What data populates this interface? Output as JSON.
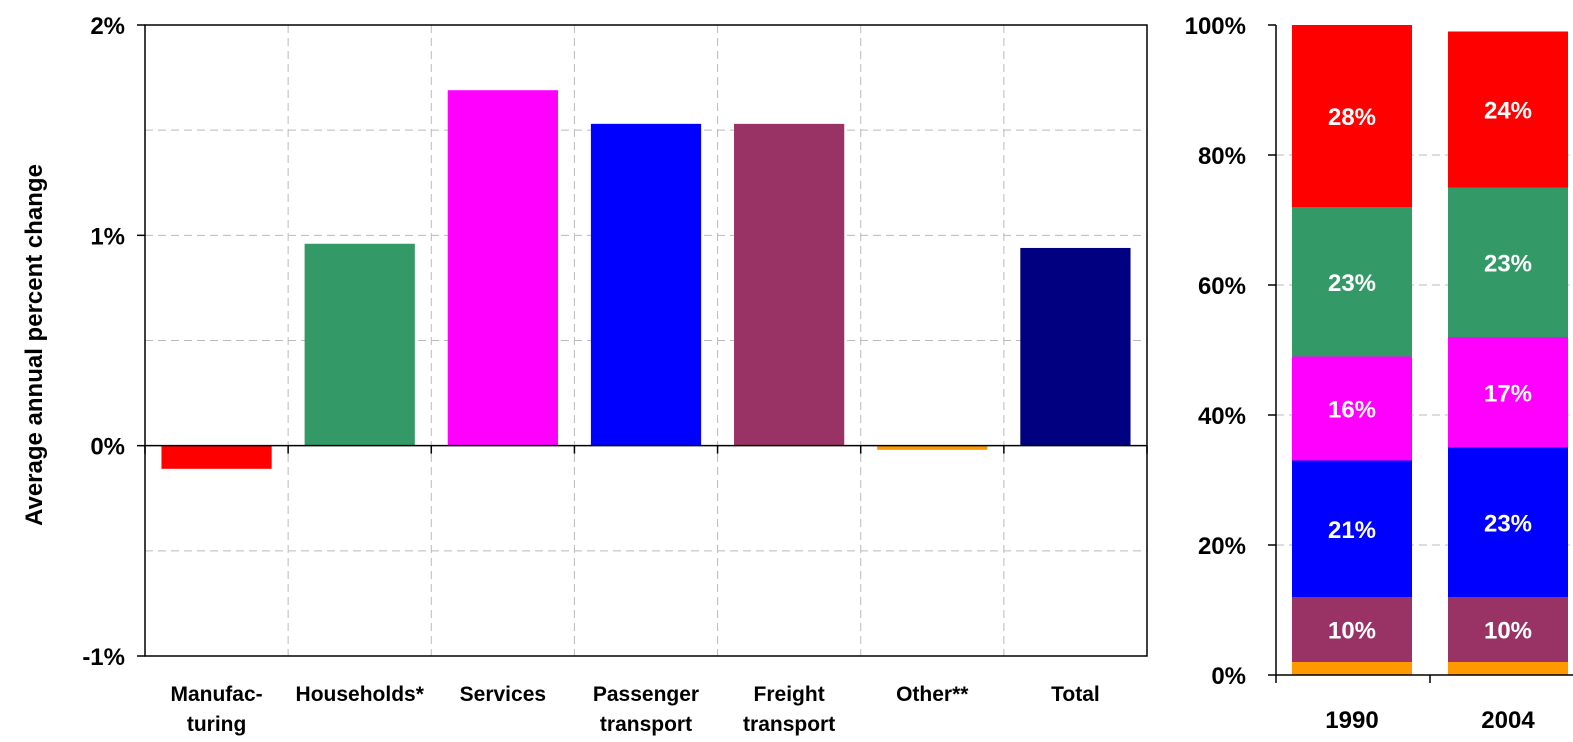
{
  "chart_data": [
    {
      "type": "bar",
      "ylabel": "Average annual percent change",
      "ylim": [
        -0.01,
        0.02
      ],
      "yticks": [
        {
          "value": 0.02,
          "label": "2%"
        },
        {
          "value": 0.01,
          "label": "1%"
        },
        {
          "value": 0.0,
          "label": "0%"
        },
        {
          "value": -0.01,
          "label": "-1%"
        }
      ],
      "categories": [
        [
          "Manufac-",
          "turing"
        ],
        [
          "Households*"
        ],
        [
          "Services"
        ],
        [
          "Passenger",
          "transport"
        ],
        [
          "Freight",
          "transport"
        ],
        [
          "Other**"
        ],
        [
          "Total"
        ]
      ],
      "values": [
        -0.0011,
        0.0096,
        0.0169,
        0.0153,
        0.0153,
        -0.0002,
        0.0094
      ],
      "colors": [
        "#ff0000",
        "#339966",
        "#ff00ff",
        "#0000ff",
        "#993366",
        "#ff9900",
        "#000080"
      ],
      "grid": true
    },
    {
      "type": "bar",
      "stacked": true,
      "ylim": [
        0,
        100
      ],
      "yticks": [
        {
          "value": 100,
          "label": "100%"
        },
        {
          "value": 80,
          "label": "80%"
        },
        {
          "value": 60,
          "label": "60%"
        },
        {
          "value": 40,
          "label": "40%"
        },
        {
          "value": 20,
          "label": "20%"
        },
        {
          "value": 0,
          "label": "0%"
        }
      ],
      "categories": [
        "1990",
        "2004"
      ],
      "series": [
        {
          "color": "#ff9900",
          "values": [
            2,
            2
          ],
          "labels": [
            "",
            ""
          ]
        },
        {
          "color": "#993366",
          "values": [
            10,
            10
          ],
          "labels": [
            "10%",
            "10%"
          ]
        },
        {
          "color": "#0000ff",
          "values": [
            21,
            23
          ],
          "labels": [
            "21%",
            "23%"
          ]
        },
        {
          "color": "#ff00ff",
          "values": [
            16,
            17
          ],
          "labels": [
            "16%",
            "17%"
          ]
        },
        {
          "color": "#339966",
          "values": [
            23,
            23
          ],
          "labels": [
            "23%",
            "23%"
          ]
        },
        {
          "color": "#ff0000",
          "values": [
            28,
            24
          ],
          "labels": [
            "28%",
            "24%"
          ]
        }
      ],
      "grid": true
    }
  ]
}
